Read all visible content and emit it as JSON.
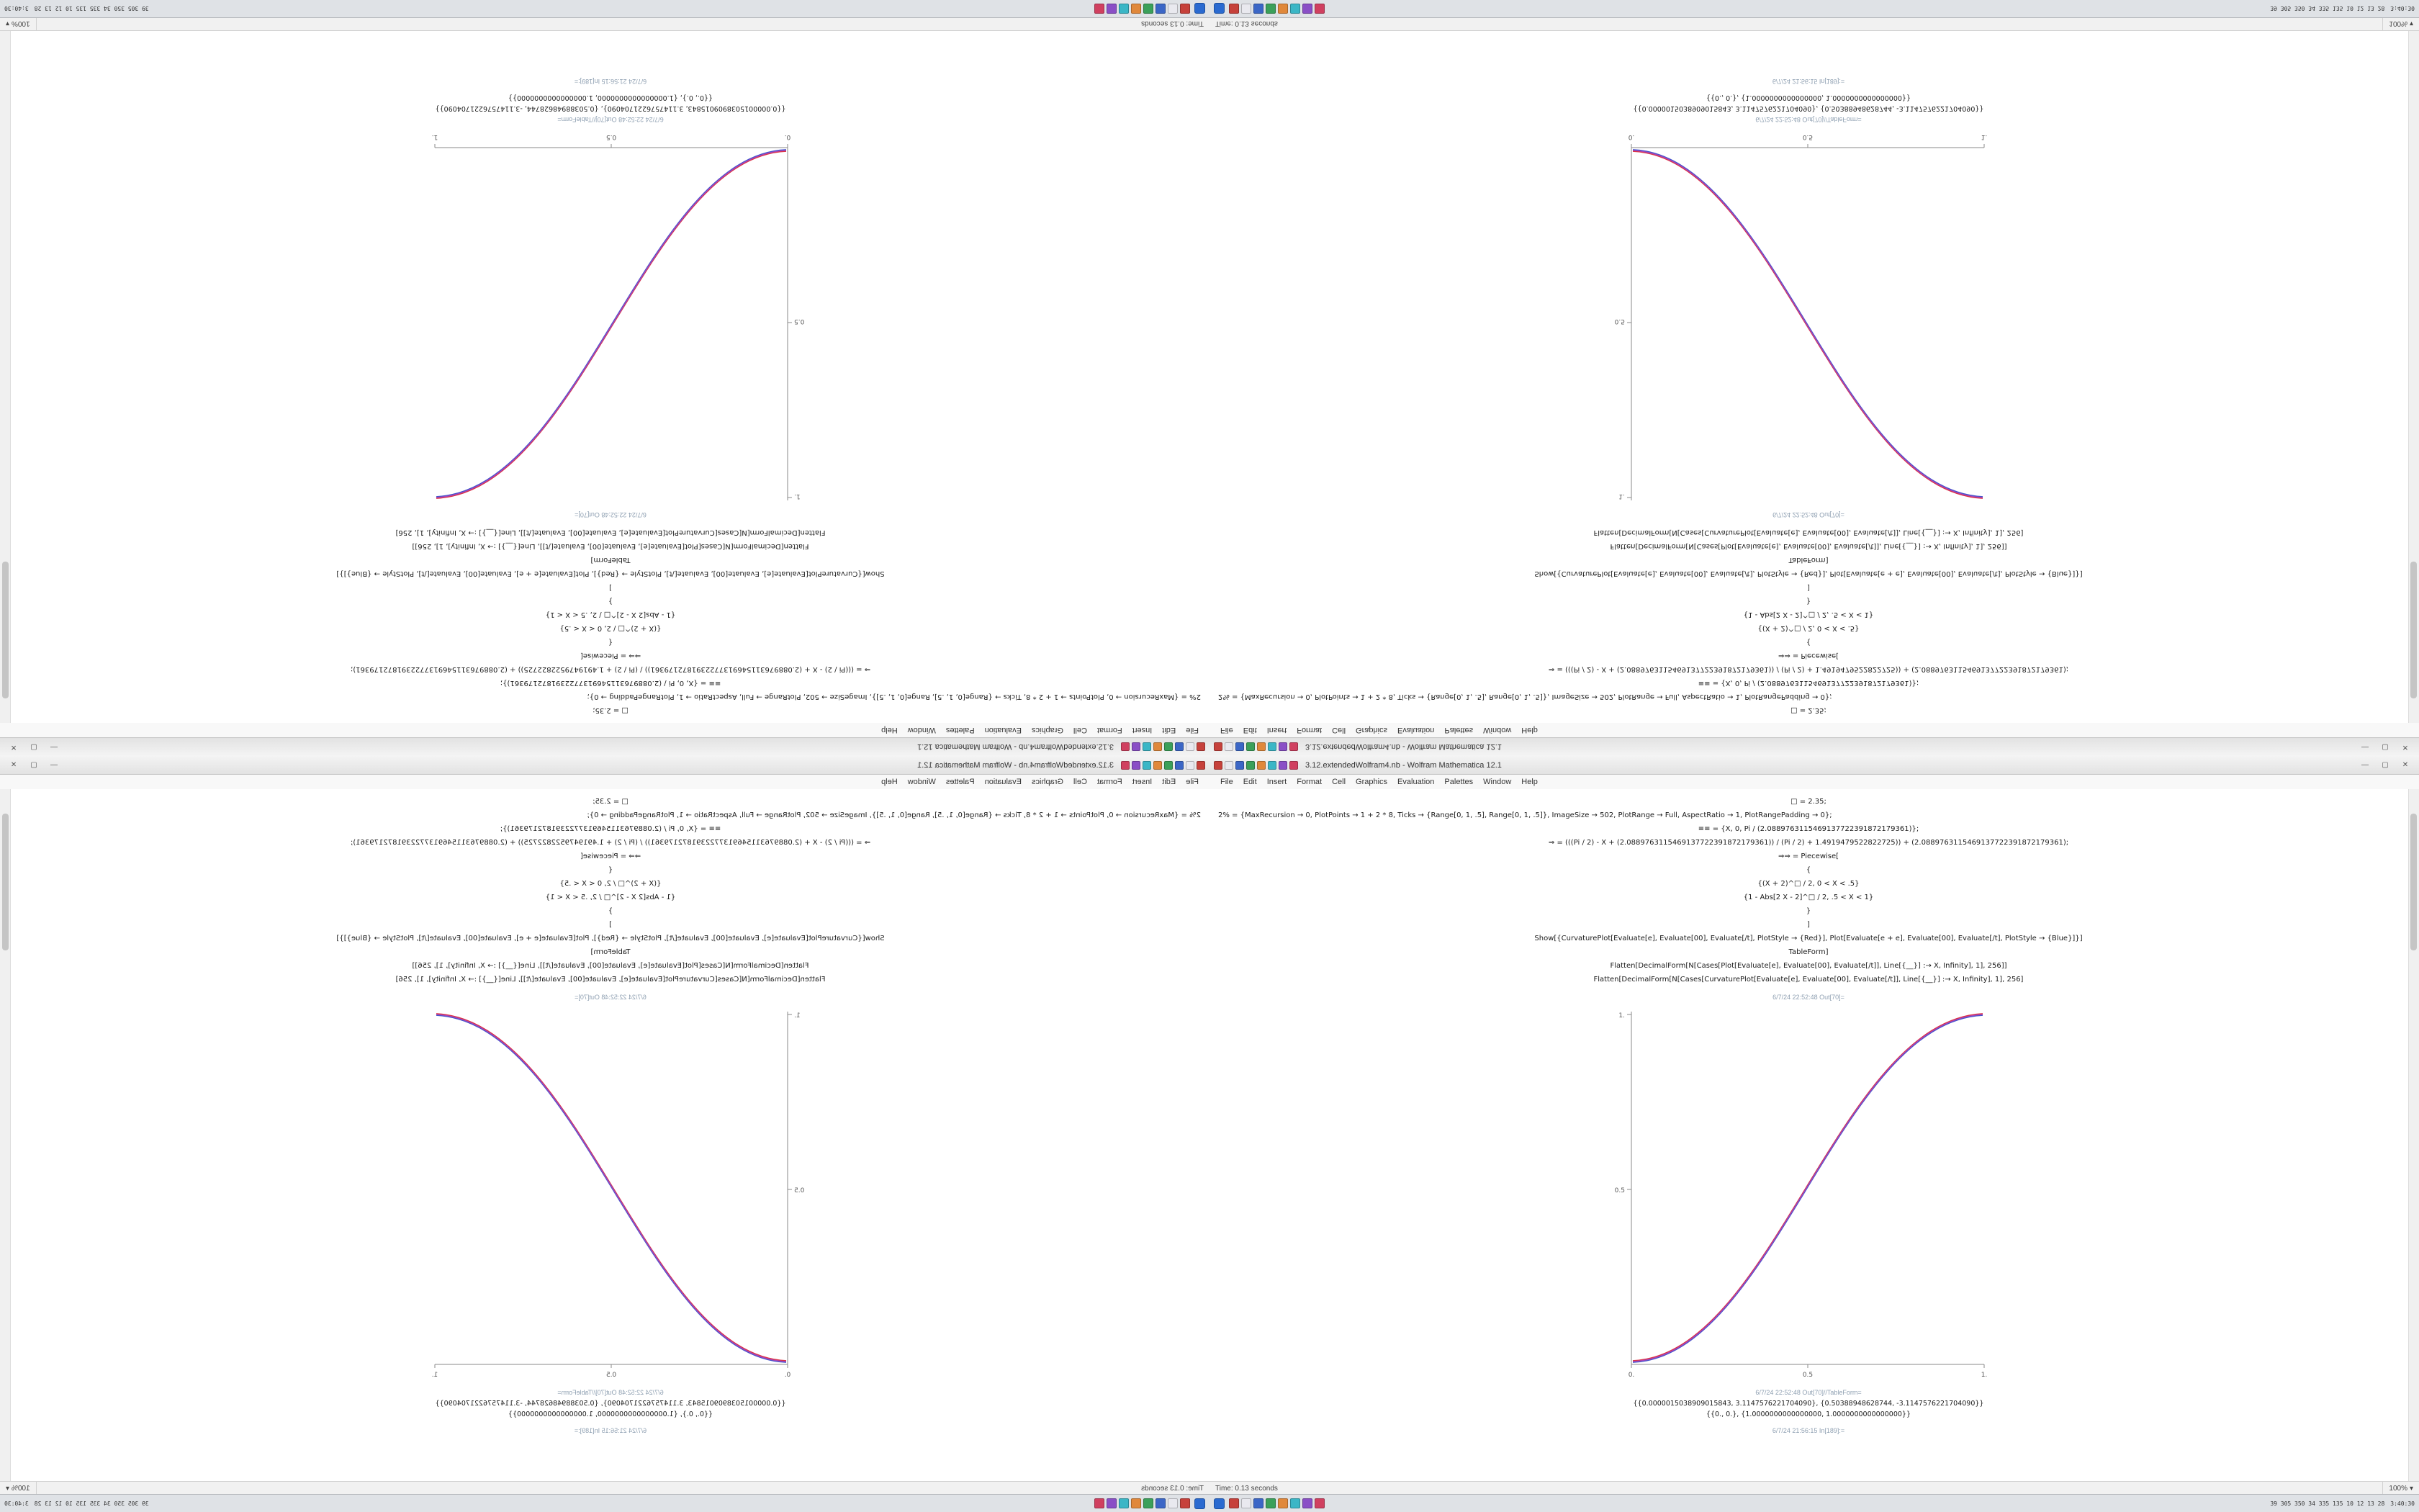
{
  "window": {
    "title": "3.12.extendedWolfram4.nb - Wolfram Mathematica 12.1",
    "controls": {
      "minimize": "—",
      "maximize": "▢",
      "close": "✕"
    }
  },
  "app_icons": [
    {
      "name": "app-icon-red",
      "color": "#c6413b"
    },
    {
      "name": "app-icon-white",
      "color": "#e9e9ef"
    },
    {
      "name": "app-icon-blue",
      "color": "#3b66c6"
    },
    {
      "name": "app-icon-green",
      "color": "#3ba05a"
    },
    {
      "name": "app-icon-orange",
      "color": "#e0883b"
    },
    {
      "name": "app-icon-teal",
      "color": "#3bb6c6"
    },
    {
      "name": "app-icon-purple",
      "color": "#8a4fc6"
    },
    {
      "name": "app-icon-crimson",
      "color": "#d04060"
    }
  ],
  "menu": {
    "items": [
      "File",
      "Edit",
      "Insert",
      "Format",
      "Cell",
      "Graphics",
      "Evaluation",
      "Palettes",
      "Window",
      "Help"
    ]
  },
  "notebook": {
    "code_lines": [
      {
        "text": "□ = 2.35;",
        "align": "center"
      },
      {
        "text": "2% = {MaxRecursion → 0, PlotPoints → 1 + 2 * 8, Ticks → {Range[0, 1, .5], Range[0, 1, .5]}, ImageSize → 502, PlotRange → Full, AspectRatio → 1, PlotRangePadding → 0};",
        "align": "left"
      },
      {
        "text": "≡≡ = {X, 0, Pi / (2.0889763115469137722391872179361)};",
        "align": "center"
      },
      {
        "text": "⇒ = (((Pi / 2) - X + (2.0889763115469137722391872179361)) / (Pi / 2) + 1.4919479522822725)) + (2.0889763115469137722391872179361);",
        "align": "center"
      },
      {
        "text": "⇒⇒ = Piecewise[",
        "align": "center"
      },
      {
        "text": "{",
        "align": "center"
      },
      {
        "text": "{(X + 2)^□ / 2, 0 < X < .5}",
        "align": "center"
      },
      {
        "text": "{1 - Abs[2 X - 2]^□ / 2, .5 < X < 1}",
        "align": "center"
      },
      {
        "text": "}",
        "align": "center"
      },
      {
        "text": "]",
        "align": "center"
      },
      {
        "text": "Show[{CurvaturePlot[Evaluate[e], Evaluate[00], Evaluate[/t], PlotStyle → {Red}], Plot[Evaluate[e + e], Evaluate[00], Evaluate[/t], PlotStyle → {Blue}]}]",
        "align": "center"
      },
      {
        "text": "TableForm]",
        "align": "center"
      },
      {
        "text": "Flatten[DecimalForm[N[Cases[Plot[Evaluate[e], Evaluate[00], Evaluate[/t]], Line[{__}] :→ X, Infinity], 1], 256]]",
        "align": "center"
      },
      {
        "text": "Flatten[DecimalForm[N[Cases[CurvaturePlot[Evaluate[e], Evaluate[00], Evaluate[/t]], Line[{__}] :→ X, Infinity], 1], 256]",
        "align": "center"
      }
    ],
    "out_plot_label": "6/7/24 22:52:48 Out[70]=",
    "out_table_label": "6/7/24 22:52:48 Out[70]//TableForm=",
    "output_lines": [
      "{{0.0000015038909015843, 3.1147576221704090}, {0.50388948628744, -3.1147576221704090}}",
      "{{0., 0.}, {1.0000000000000000, 1.0000000000000000}}"
    ],
    "next_input_label": "6/7/24 21:56:15 In[189]:="
  },
  "plot": {
    "x_ticks": [
      "0.",
      "0.5",
      "1."
    ],
    "y_tick_top": "1.",
    "y_tick_mid": "0.5",
    "axis_color": "#888888",
    "curve_red": "#dd3344",
    "curve_blue": "#4455cc",
    "curve_purple": "#a844b8"
  },
  "chart_data": {
    "type": "line",
    "title": "",
    "xlabel": "",
    "ylabel": "",
    "xlim": [
      0,
      1
    ],
    "ylim": [
      0,
      1
    ],
    "x_tick_labels": [
      "0.",
      "0.5",
      "1."
    ],
    "y_tick_labels": [
      "0.",
      "0.5",
      "1."
    ],
    "legend": "none",
    "series": [
      {
        "name": "curvature-plot-red",
        "color": "#dd3344",
        "points": [
          [
            0,
            0
          ],
          [
            0.125,
            0.01
          ],
          [
            0.25,
            0.06
          ],
          [
            0.375,
            0.2
          ],
          [
            0.5,
            0.5
          ],
          [
            0.625,
            0.8
          ],
          [
            0.75,
            0.94
          ],
          [
            0.875,
            0.99
          ],
          [
            1,
            1
          ]
        ]
      },
      {
        "name": "plot-blue",
        "color": "#4455cc",
        "points": [
          [
            0,
            0
          ],
          [
            0.125,
            0.01
          ],
          [
            0.25,
            0.06
          ],
          [
            0.375,
            0.2
          ],
          [
            0.5,
            0.5
          ],
          [
            0.625,
            0.8
          ],
          [
            0.75,
            0.94
          ],
          [
            0.875,
            0.99
          ],
          [
            1,
            1
          ]
        ]
      }
    ]
  },
  "statusbar": {
    "left_text": "Time: 0.13 seconds",
    "zoom": "100%",
    "zoom_caret": "▾"
  },
  "taskbar": {
    "tray_text": "39 305 350 34 335 135 10 12 13 28",
    "clock": "3:40:30"
  }
}
